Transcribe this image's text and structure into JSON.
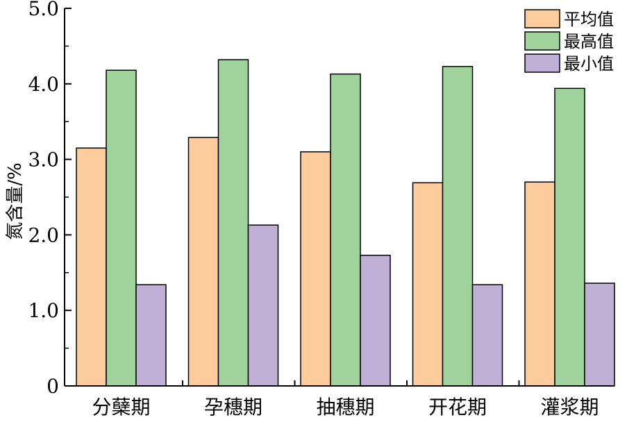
{
  "chart_data": {
    "type": "bar",
    "title": "",
    "xlabel": "",
    "ylabel": "氮含量/%",
    "ylim": [
      0,
      5.0
    ],
    "yticks": [
      "0",
      "1.0",
      "2.0",
      "3.0",
      "4.0",
      "5.0"
    ],
    "grid": false,
    "legend_position": "top-right",
    "categories": [
      "分蘖期",
      "孕穗期",
      "抽穗期",
      "开花期",
      "灌浆期"
    ],
    "series": [
      {
        "name": "平均值",
        "color": "#fdcc9d",
        "values": [
          3.15,
          3.29,
          3.1,
          2.69,
          2.7
        ]
      },
      {
        "name": "最高值",
        "color": "#9fd39b",
        "values": [
          4.18,
          4.32,
          4.13,
          4.23,
          3.94
        ]
      },
      {
        "name": "最小值",
        "color": "#c0afd6",
        "values": [
          1.34,
          2.13,
          1.73,
          1.34,
          1.36
        ]
      }
    ]
  }
}
